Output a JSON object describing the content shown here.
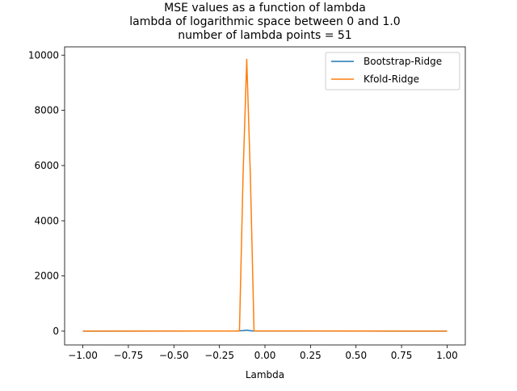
{
  "chart_data": {
    "type": "line",
    "title_lines": [
      "MSE values as a function of lambda",
      "lambda of logarithmic space between 0 and 1.0",
      "number of lambda points = 51"
    ],
    "xlabel": "Lambda",
    "ylabel": "",
    "xlim": [
      -1.1,
      1.1
    ],
    "ylim": [
      -500,
      10300
    ],
    "xticks": [
      -1.0,
      -0.75,
      -0.5,
      -0.25,
      0.0,
      0.25,
      0.5,
      0.75,
      1.0
    ],
    "xtick_labels": [
      "−1.00",
      "−0.75",
      "−0.50",
      "−0.25",
      "0.00",
      "0.25",
      "0.50",
      "0.75",
      "1.00"
    ],
    "yticks": [
      0,
      2000,
      4000,
      6000,
      8000,
      10000
    ],
    "ytick_labels": [
      "0",
      "2000",
      "4000",
      "6000",
      "8000",
      "10000"
    ],
    "grid": false,
    "legend_position": "top-right",
    "series": [
      {
        "name": "Bootstrap-Ridge",
        "color": "#1f77b4",
        "x": [
          -1.0,
          -0.16,
          -0.12,
          -0.1,
          -0.08,
          -0.06,
          1.0
        ],
        "y": [
          0,
          5,
          20,
          35,
          15,
          5,
          0
        ]
      },
      {
        "name": "Kfold-Ridge",
        "color": "#ff7f0e",
        "x": [
          -1.0,
          -0.2,
          -0.14,
          -0.12,
          -0.1,
          -0.08,
          -0.06,
          1.0
        ],
        "y": [
          0,
          5,
          10,
          5700,
          9850,
          5600,
          10,
          0
        ]
      }
    ]
  }
}
